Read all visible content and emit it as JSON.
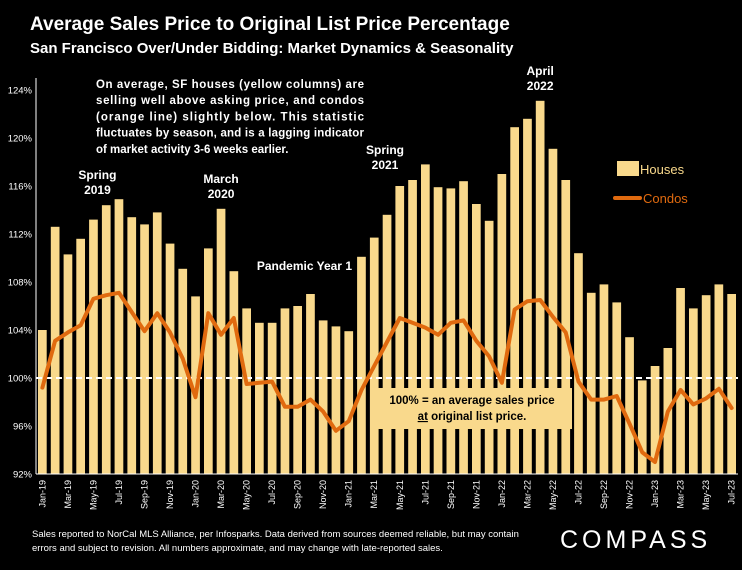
{
  "header": {
    "title": "Average Sales Price to Original List Price Percentage",
    "subtitle": "San Francisco Over/Under Bidding: Market Dynamics & Seasonality"
  },
  "footer": {
    "note": "Sales reported to NorCal MLS Alliance, per Infosparks. Data derived from sources deemed reliable, but may contain errors and subject to revision. All numbers approximate, and may change with late-reported sales.",
    "brand": "COMPASS"
  },
  "colors": {
    "houses": "#f9d98c",
    "condos": "#e06a0f",
    "background": "#000000",
    "callout_bg": "#f9d98c",
    "reference_line": "#ffffff"
  },
  "chart_data": {
    "type": "bar",
    "x": [
      "Jan-19",
      "Feb-19",
      "Mar-19",
      "Apr-19",
      "May-19",
      "Jun-19",
      "Jul-19",
      "Aug-19",
      "Sep-19",
      "Oct-19",
      "Nov-19",
      "Dec-19",
      "Jan-20",
      "Feb-20",
      "Mar-20",
      "Apr-20",
      "May-20",
      "Jun-20",
      "Jul-20",
      "Aug-20",
      "Sep-20",
      "Oct-20",
      "Nov-20",
      "Dec-20",
      "Jan-21",
      "Feb-21",
      "Mar-21",
      "Apr-21",
      "May-21",
      "Jun-21",
      "Jul-21",
      "Aug-21",
      "Sep-21",
      "Oct-21",
      "Nov-21",
      "Dec-21",
      "Jan-22",
      "Feb-22",
      "Mar-22",
      "Apr-22",
      "May-22",
      "Jun-22",
      "Jul-22",
      "Aug-22",
      "Sep-22",
      "Oct-22",
      "Nov-22",
      "Dec-22",
      "Jan-23",
      "Feb-23",
      "Mar-23",
      "Apr-23",
      "May-23",
      "Jun-23",
      "Jul-23"
    ],
    "x_tick_labels": [
      "Jan-19",
      "Mar-19",
      "May-19",
      "Jul-19",
      "Sep-19",
      "Nov-19",
      "Jan-20",
      "Mar-20",
      "May-20",
      "Jul-20",
      "Sep-20",
      "Nov-20",
      "Jan-21",
      "Mar-21",
      "May-21",
      "Jul-21",
      "Sep-21",
      "Nov-21",
      "Jan-22",
      "Mar-22",
      "May-22",
      "Jul-22",
      "Sep-22",
      "Nov-22",
      "Jan-23",
      "Mar-23",
      "May-23",
      "Jul-23"
    ],
    "series": [
      {
        "name": "Houses",
        "type": "bar",
        "color": "#f9d98c",
        "values": [
          104.0,
          112.6,
          110.3,
          111.6,
          113.2,
          114.4,
          114.9,
          113.4,
          112.8,
          113.8,
          111.2,
          109.1,
          106.8,
          110.8,
          114.1,
          108.9,
          105.8,
          104.6,
          104.6,
          105.8,
          106.0,
          107.0,
          104.8,
          104.3,
          103.9,
          110.1,
          111.7,
          113.6,
          116.0,
          116.5,
          117.8,
          115.9,
          115.8,
          116.4,
          114.5,
          113.1,
          117.0,
          120.9,
          121.6,
          123.1,
          119.1,
          116.5,
          110.4,
          107.1,
          107.8,
          106.3,
          103.4,
          99.8,
          101.0,
          102.5,
          107.5,
          105.8,
          106.9,
          107.8,
          107.0
        ]
      },
      {
        "name": "Condos",
        "type": "line",
        "color": "#e06a0f",
        "values": [
          99.2,
          103.1,
          103.8,
          104.4,
          106.6,
          106.9,
          107.1,
          105.5,
          103.9,
          105.4,
          103.8,
          101.6,
          98.4,
          105.4,
          103.6,
          105.0,
          99.5,
          99.6,
          99.7,
          97.6,
          97.6,
          98.2,
          97.2,
          95.6,
          96.4,
          99.0,
          101.0,
          103.0,
          105.0,
          104.6,
          104.2,
          103.6,
          104.6,
          104.8,
          103.1,
          101.8,
          99.6,
          105.7,
          106.4,
          106.5,
          105.1,
          103.8,
          99.7,
          98.2,
          98.2,
          98.5,
          96.2,
          93.8,
          93.0,
          97.2,
          99.0,
          97.8,
          98.3,
          99.1,
          97.5
        ]
      }
    ],
    "yaxis": {
      "ticks": [
        "92%",
        "96%",
        "100%",
        "104%",
        "108%",
        "112%",
        "116%",
        "120%",
        "124%"
      ],
      "ylim": [
        92,
        125
      ]
    },
    "reference_line": 100,
    "legend": {
      "placement": "right",
      "entries": [
        "Houses",
        "Condos"
      ]
    },
    "annotations": [
      {
        "lines": [
          "Spring",
          "2019"
        ],
        "at": "Jul-19"
      },
      {
        "lines": [
          "March",
          "2020"
        ],
        "at": "Mar-20"
      },
      {
        "lines": [
          "Pandemic Year 1"
        ],
        "at": "Oct-20"
      },
      {
        "lines": [
          "Spring",
          "2021"
        ],
        "at": "May-21"
      },
      {
        "lines": [
          "April",
          "2022"
        ],
        "at": "Apr-22"
      }
    ],
    "description_box": [
      "On average, SF houses (yellow columns) are",
      "selling well above asking price, and condos",
      "(orange line) slightly below. This statistic",
      "fluctuates by season, and is a lagging indicator",
      "of market activity 3-6 weeks earlier."
    ],
    "callout": {
      "line1": "100% = an average sales price",
      "line2_underlined": "at",
      "line2_rest": " original list price."
    }
  }
}
